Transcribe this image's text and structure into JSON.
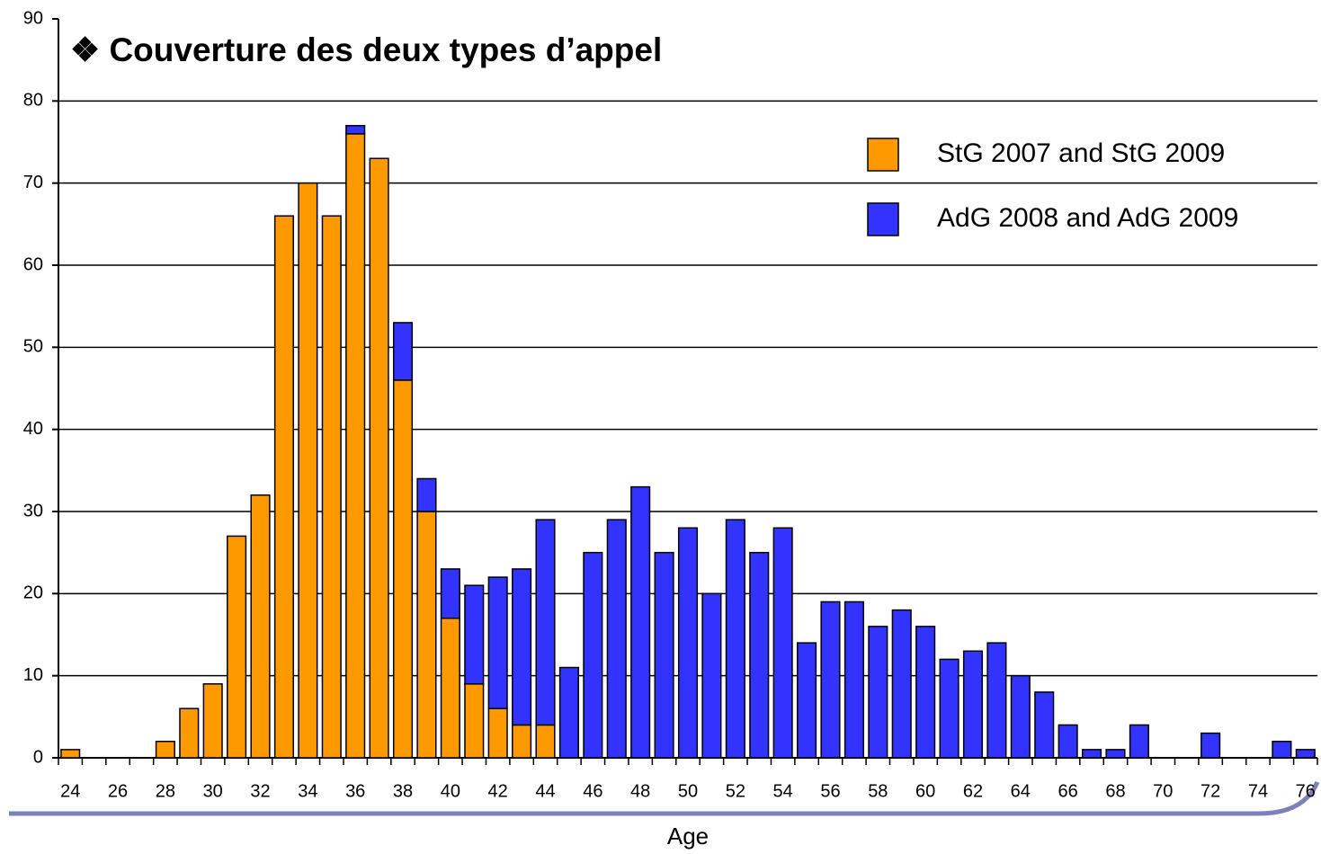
{
  "chart_data": {
    "type": "bar",
    "stacked": true,
    "title": "❖ Couverture des deux types d’appel",
    "x_label": "Age",
    "categories": [
      "24",
      null,
      "26",
      null,
      "28",
      null,
      "30",
      null,
      "32",
      null,
      "34",
      null,
      "36",
      null,
      "38",
      null,
      "40",
      null,
      "42",
      null,
      "44",
      null,
      "46",
      null,
      "48",
      null,
      "50",
      null,
      "52",
      null,
      "54",
      null,
      "56",
      null,
      "58",
      null,
      "60",
      null,
      "62",
      null,
      "64",
      null,
      "66",
      null,
      "68",
      null,
      "70",
      null,
      "72",
      null,
      "74",
      null,
      "76"
    ],
    "series": [
      {
        "name": "StG 2007 and StG 2009",
        "color": "#ff9900",
        "values": [
          1,
          0,
          0,
          0,
          2,
          6,
          9,
          27,
          32,
          66,
          70,
          66,
          76,
          73,
          46,
          30,
          17,
          9,
          6,
          4,
          4,
          0,
          0,
          0,
          0,
          0,
          0,
          0,
          0,
          0,
          0,
          0,
          0,
          0,
          0,
          0,
          0,
          0,
          0,
          0,
          0,
          0,
          0,
          0,
          0,
          0,
          0,
          0,
          0,
          0,
          0,
          0,
          0
        ]
      },
      {
        "name": "AdG 2008 and AdG 2009",
        "color": "#3333ff",
        "values": [
          0,
          0,
          0,
          0,
          0,
          0,
          0,
          0,
          0,
          0,
          0,
          0,
          1,
          0,
          7,
          4,
          6,
          12,
          16,
          19,
          25,
          11,
          25,
          29,
          33,
          25,
          28,
          20,
          29,
          25,
          28,
          14,
          19,
          19,
          16,
          18,
          16,
          12,
          13,
          14,
          10,
          8,
          4,
          1,
          1,
          4,
          0,
          0,
          3,
          0,
          0,
          2,
          1
        ]
      }
    ],
    "ylim": [
      0,
      90
    ],
    "yticks": [
      0,
      10,
      20,
      30,
      40,
      50,
      60,
      70,
      80,
      90
    ],
    "grid": true,
    "legend": "upper right"
  }
}
